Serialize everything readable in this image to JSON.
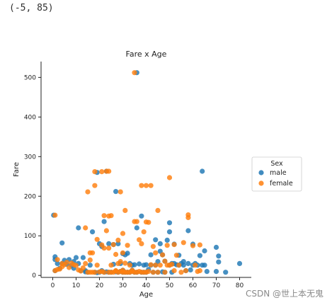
{
  "cell_output": "(-5, 85)",
  "watermark": "CSDN @世上本无鬼",
  "chart_data": {
    "type": "scatter",
    "title": "Fare x Age",
    "xlabel": "Age",
    "ylabel": "Fare",
    "xlim": [
      -5,
      85
    ],
    "ylim": [
      -5,
      540
    ],
    "xticks": [
      0,
      10,
      20,
      30,
      40,
      50,
      60,
      70,
      80
    ],
    "yticks": [
      0,
      100,
      200,
      300,
      400,
      500
    ],
    "grid": false,
    "legend": {
      "title": "Sex",
      "placement": "right"
    },
    "series": [
      {
        "name": "male",
        "color": "#1f77b4",
        "points": [
          [
            0.4,
            152
          ],
          [
            1,
            12
          ],
          [
            1,
            40
          ],
          [
            1,
            47
          ],
          [
            2,
            30
          ],
          [
            3,
            18
          ],
          [
            4,
            30
          ],
          [
            4,
            82
          ],
          [
            5,
            38
          ],
          [
            6,
            28
          ],
          [
            7,
            40
          ],
          [
            8,
            25
          ],
          [
            9,
            35
          ],
          [
            9,
            18
          ],
          [
            10,
            45
          ],
          [
            11,
            30
          ],
          [
            11,
            120
          ],
          [
            12,
            12
          ],
          [
            13,
            45
          ],
          [
            14,
            9
          ],
          [
            14,
            12
          ],
          [
            15,
            8
          ],
          [
            16,
            26
          ],
          [
            17,
            110
          ],
          [
            18,
            8
          ],
          [
            19,
            260
          ],
          [
            19,
            7
          ],
          [
            20,
            8
          ],
          [
            20,
            80
          ],
          [
            21,
            12
          ],
          [
            21,
            73
          ],
          [
            22,
            8
          ],
          [
            22,
            136
          ],
          [
            23,
            9
          ],
          [
            23,
            263
          ],
          [
            24,
            8
          ],
          [
            24,
            80
          ],
          [
            25,
            8
          ],
          [
            26,
            28
          ],
          [
            26,
            78
          ],
          [
            27,
            9
          ],
          [
            27,
            212
          ],
          [
            28,
            8
          ],
          [
            28,
            80
          ],
          [
            29,
            10
          ],
          [
            29,
            30
          ],
          [
            30,
            8
          ],
          [
            30,
            13
          ],
          [
            30,
            55
          ],
          [
            31,
            52
          ],
          [
            31,
            8
          ],
          [
            32,
            8
          ],
          [
            32,
            56
          ],
          [
            33,
            8
          ],
          [
            33,
            30
          ],
          [
            34,
            13
          ],
          [
            34,
            26
          ],
          [
            35,
            8
          ],
          [
            35,
            27
          ],
          [
            36,
            512
          ],
          [
            36,
            8
          ],
          [
            36,
            120
          ],
          [
            37,
            29
          ],
          [
            38,
            8
          ],
          [
            38,
            150
          ],
          [
            39,
            26
          ],
          [
            39,
            8
          ],
          [
            40,
            8
          ],
          [
            40,
            27
          ],
          [
            41,
            15
          ],
          [
            42,
            26
          ],
          [
            42,
            52
          ],
          [
            43,
            8
          ],
          [
            44,
            26
          ],
          [
            44,
            90
          ],
          [
            45,
            8
          ],
          [
            45,
            35
          ],
          [
            46,
            61
          ],
          [
            46,
            80
          ],
          [
            47,
            9
          ],
          [
            47,
            52
          ],
          [
            48,
            8
          ],
          [
            48,
            36
          ],
          [
            49,
            89
          ],
          [
            50,
            26
          ],
          [
            50,
            110
          ],
          [
            50,
            133
          ],
          [
            51,
            8
          ],
          [
            51,
            30
          ],
          [
            52,
            30
          ],
          [
            52,
            79
          ],
          [
            53,
            27
          ],
          [
            54,
            26
          ],
          [
            54,
            51
          ],
          [
            55,
            30
          ],
          [
            56,
            26
          ],
          [
            56,
            35
          ],
          [
            57,
            12
          ],
          [
            58,
            30
          ],
          [
            58,
            113
          ],
          [
            59,
            14
          ],
          [
            60,
            26
          ],
          [
            60,
            79
          ],
          [
            61,
            30
          ],
          [
            62,
            26
          ],
          [
            63,
            50
          ],
          [
            64,
            263
          ],
          [
            64,
            26
          ],
          [
            65,
            26
          ],
          [
            65,
            62
          ],
          [
            66,
            10
          ],
          [
            70,
            10
          ],
          [
            70,
            71
          ],
          [
            71,
            34
          ],
          [
            71,
            49
          ],
          [
            74,
            8
          ],
          [
            80,
            30
          ]
        ]
      },
      {
        "name": "female",
        "color": "#ff7f0e",
        "points": [
          [
            1,
            12
          ],
          [
            1,
            152
          ],
          [
            2,
            15
          ],
          [
            2,
            40
          ],
          [
            3,
            16
          ],
          [
            4,
            22
          ],
          [
            4,
            30
          ],
          [
            5,
            27
          ],
          [
            6,
            33
          ],
          [
            7,
            20
          ],
          [
            8,
            31
          ],
          [
            9,
            27
          ],
          [
            10,
            25
          ],
          [
            11,
            14
          ],
          [
            12,
            11
          ],
          [
            13,
            19
          ],
          [
            14,
            30
          ],
          [
            14,
            120
          ],
          [
            15,
            8
          ],
          [
            15,
            211
          ],
          [
            16,
            8
          ],
          [
            16,
            57
          ],
          [
            16,
            39
          ],
          [
            17,
            8
          ],
          [
            17,
            57
          ],
          [
            18,
            8
          ],
          [
            18,
            262
          ],
          [
            18,
            227
          ],
          [
            19,
            26
          ],
          [
            19,
            91
          ],
          [
            20,
            9
          ],
          [
            21,
            10
          ],
          [
            21,
            262
          ],
          [
            21,
            77
          ],
          [
            22,
            8
          ],
          [
            22,
            151
          ],
          [
            22,
            69
          ],
          [
            23,
            263
          ],
          [
            23,
            113
          ],
          [
            24,
            8
          ],
          [
            24,
            69
          ],
          [
            24,
            263
          ],
          [
            24,
            150
          ],
          [
            25,
            8
          ],
          [
            25,
            26
          ],
          [
            25,
            151
          ],
          [
            26,
            8
          ],
          [
            26,
            78
          ],
          [
            27,
            11
          ],
          [
            27,
            12
          ],
          [
            27,
            53
          ],
          [
            28,
            8
          ],
          [
            28,
            89
          ],
          [
            28,
            30
          ],
          [
            29,
            10
          ],
          [
            29,
            35
          ],
          [
            29,
            211
          ],
          [
            30,
            8
          ],
          [
            30,
            13
          ],
          [
            30,
            106
          ],
          [
            30,
            57
          ],
          [
            31,
            8
          ],
          [
            31,
            164
          ],
          [
            31,
            31
          ],
          [
            32,
            8
          ],
          [
            32,
            76
          ],
          [
            33,
            8
          ],
          [
            33,
            26
          ],
          [
            34,
            10
          ],
          [
            34,
            13
          ],
          [
            35,
            512
          ],
          [
            35,
            8
          ],
          [
            35,
            136
          ],
          [
            36,
            8
          ],
          [
            36,
            136
          ],
          [
            37,
            10
          ],
          [
            37,
            90
          ],
          [
            38,
            8
          ],
          [
            38,
            227
          ],
          [
            38,
            80
          ],
          [
            39,
            8
          ],
          [
            39,
            110
          ],
          [
            40,
            8
          ],
          [
            40,
            135
          ],
          [
            40,
            227
          ],
          [
            41,
            10
          ],
          [
            41,
            134
          ],
          [
            42,
            27
          ],
          [
            42,
            227
          ],
          [
            43,
            8
          ],
          [
            43,
            73
          ],
          [
            44,
            26
          ],
          [
            44,
            57
          ],
          [
            45,
            8
          ],
          [
            45,
            164
          ],
          [
            46,
            26
          ],
          [
            47,
            52
          ],
          [
            48,
            8
          ],
          [
            48,
            36
          ],
          [
            49,
            26
          ],
          [
            49,
            76
          ],
          [
            50,
            26
          ],
          [
            50,
            247
          ],
          [
            51,
            28
          ],
          [
            52,
            78
          ],
          [
            52,
            12
          ],
          [
            53,
            51
          ],
          [
            54,
            26
          ],
          [
            55,
            8
          ],
          [
            56,
            83
          ],
          [
            57,
            12
          ],
          [
            58,
            146
          ],
          [
            58,
            153
          ],
          [
            60,
            75
          ],
          [
            61,
            26
          ],
          [
            62,
            10
          ],
          [
            63,
            77
          ],
          [
            63,
            12
          ]
        ]
      }
    ]
  }
}
